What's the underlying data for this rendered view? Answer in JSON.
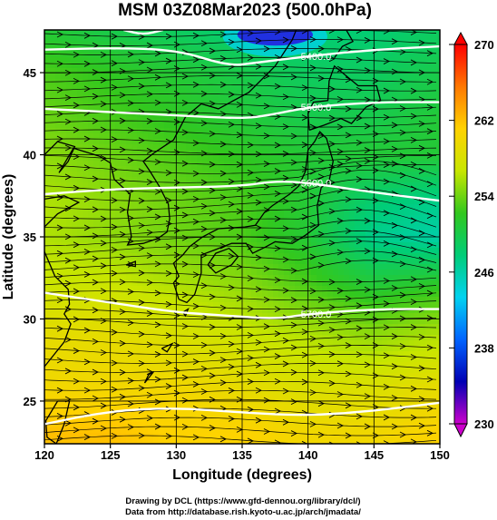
{
  "title": "MSM 03Z08Mar2023 (500.0hPa)",
  "credits": [
    "Drawing by DCL (https://www.gfd-dennou.org/library/dcl/)",
    "Data from http://database.rish.kyoto-u.ac.jp/arch/jmadata/"
  ],
  "chart_data": {
    "type": "heatmap",
    "title": "MSM 03Z08Mar2023 (500.0hPa)",
    "xlabel": "Longitude (degrees)",
    "ylabel": "Latitude  (degrees)",
    "xlim": [
      120,
      150
    ],
    "ylim": [
      22.4,
      47.6
    ],
    "x_ticks": [
      "120",
      "125",
      "130",
      "135",
      "140",
      "145",
      "150"
    ],
    "y_ticks": [
      "25",
      "30",
      "35",
      "40",
      "45"
    ],
    "grid": true,
    "colorbar": {
      "range": [
        230,
        270
      ],
      "ticks": [
        "230",
        "238",
        "246",
        "254",
        "262",
        "270"
      ],
      "colors": [
        "#cc00cc",
        "#0000b4",
        "#0064ff",
        "#00d2f0",
        "#00cd78",
        "#32c81e",
        "#c8e600",
        "#ffd200",
        "#ff7800",
        "#ff0000"
      ]
    },
    "shading_field": {
      "units": "K",
      "lon": [
        120,
        125,
        130,
        135,
        140,
        145,
        150
      ],
      "lat": [
        47.6,
        45,
        42,
        40,
        37,
        35,
        32,
        29,
        26,
        23
      ],
      "values": [
        [
          251,
          250,
          249,
          248,
          248,
          248,
          249
        ],
        [
          253,
          252,
          251,
          250,
          249,
          249,
          250
        ],
        [
          254,
          253,
          252,
          251,
          250,
          250,
          251
        ],
        [
          255,
          254,
          253,
          252,
          251,
          251,
          251
        ],
        [
          256,
          255,
          254,
          253,
          251,
          248,
          247
        ],
        [
          256,
          255,
          254,
          253,
          251,
          247,
          246
        ],
        [
          257,
          257,
          256,
          255,
          253,
          251,
          252
        ],
        [
          259,
          259,
          258,
          257,
          256,
          255,
          256
        ],
        [
          260,
          260,
          260,
          259,
          258,
          258,
          259
        ],
        [
          262,
          262,
          261,
          261,
          260,
          260,
          261
        ]
      ]
    },
    "contours": [
      {
        "label": "5400.0",
        "lon": [
          120,
          125,
          130,
          134,
          136,
          140,
          145,
          150
        ],
        "lat": [
          46.4,
          46.5,
          46.4,
          45.4,
          45.6,
          46.0,
          46.4,
          46.6
        ]
      },
      {
        "label": "5500.0",
        "lon": [
          120,
          125,
          130,
          135,
          137,
          140,
          145,
          150
        ],
        "lat": [
          42.8,
          42.6,
          42.4,
          42.2,
          42.4,
          42.9,
          43.2,
          43.2
        ]
      },
      {
        "label": "5600.0",
        "lon": [
          120,
          125,
          130,
          135,
          137.5,
          140,
          145,
          150
        ],
        "lat": [
          37.6,
          37.9,
          38.0,
          38.1,
          38.4,
          38.3,
          37.7,
          37.2
        ]
      },
      {
        "label": "5700.0",
        "lon": [
          120,
          125,
          130,
          134,
          137.5,
          140,
          145,
          150
        ],
        "lat": [
          31.6,
          31.0,
          30.4,
          30.2,
          30.0,
          30.3,
          30.6,
          30.6
        ]
      },
      {
        "label": "",
        "lon": [
          120,
          125,
          130,
          135,
          140,
          145,
          150
        ],
        "lat": [
          23.6,
          24.4,
          24.6,
          24.3,
          24.1,
          24.4,
          24.9
        ]
      },
      {
        "label": "",
        "lon": [
          126,
          127.5,
          129
        ],
        "lat": [
          47.6,
          47.3,
          47.6
        ]
      }
    ],
    "low_center": {
      "lon": [
        134.5,
        140.5
      ],
      "lat": [
        46.6,
        47.8
      ]
    }
  }
}
